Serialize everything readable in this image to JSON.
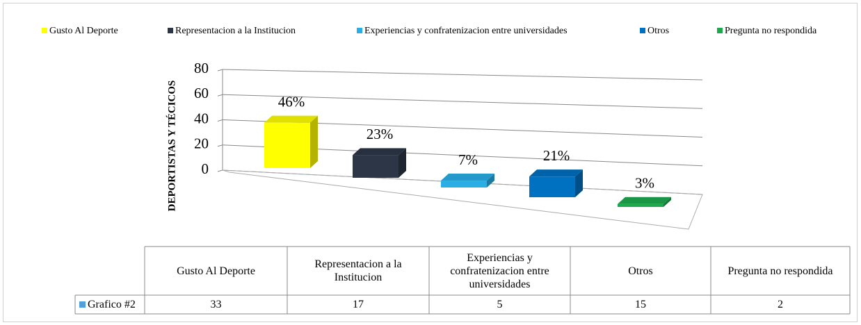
{
  "chart_data": {
    "type": "bar3d",
    "y_axis_label": "DEPORTISTAS Y TÉCICOS",
    "categories": [
      "Gusto Al Deporte",
      "Representacion a la Institucion",
      "Experiencias y confratenizacion entre universidades",
      "Otros",
      "Pregunta no respondida"
    ],
    "colors": [
      "#ffff00",
      "#2c3646",
      "#29aee6",
      "#0070c0",
      "#1ea84e"
    ],
    "values": [
      46,
      23,
      7,
      21,
      3
    ],
    "value_labels": [
      "46%",
      "23%",
      "7%",
      "21%",
      "3%"
    ],
    "ylim": [
      0,
      80
    ],
    "yticks": [
      0,
      20,
      40,
      60,
      80
    ],
    "grid": true,
    "legend": "top",
    "table": {
      "series_name": "Grafico #2",
      "color": "#4f9fdc",
      "values": [
        33,
        17,
        5,
        15,
        2
      ]
    }
  }
}
